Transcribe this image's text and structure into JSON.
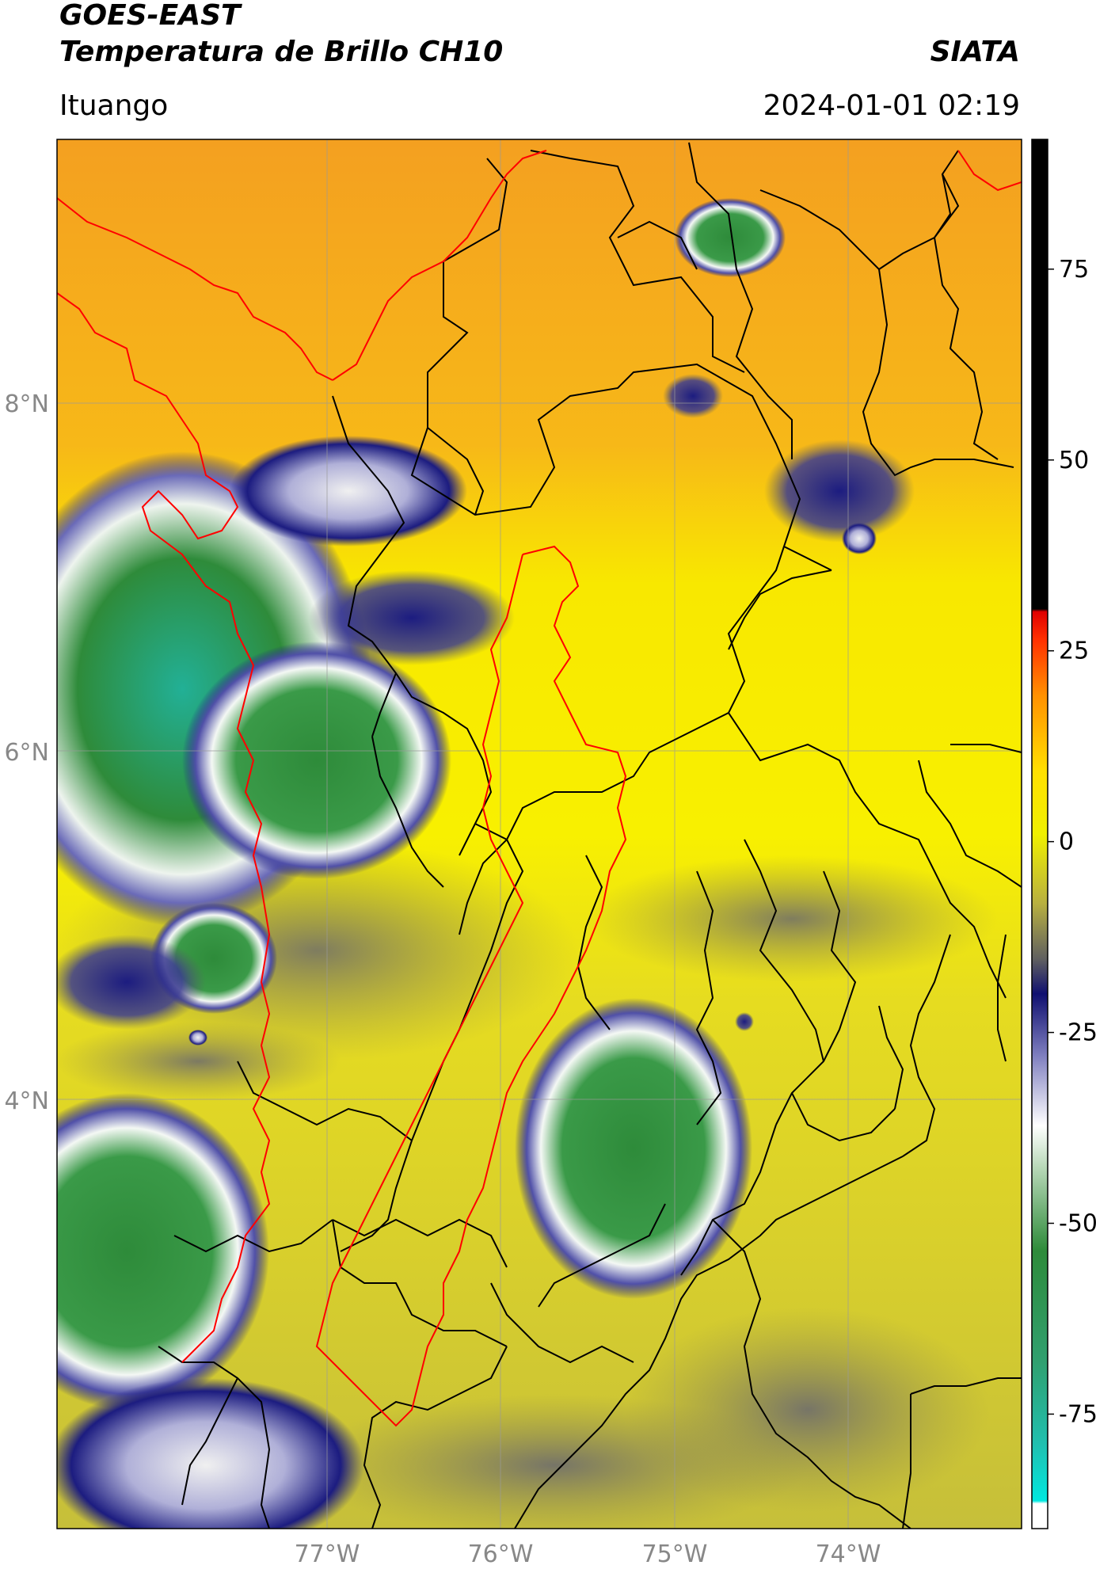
{
  "header": {
    "satellite": "GOES-EAST",
    "product": "Temperatura de Brillo CH10",
    "organization": "SIATA",
    "location": "Ituango",
    "datetime": "2024-01-01 02:19"
  },
  "map": {
    "latitude_labels": [
      "8°N",
      "6°N",
      "4°N"
    ],
    "longitude_labels": [
      "77°W",
      "76°W",
      "75°W",
      "74°W"
    ],
    "colors": {
      "background_orange": "#f5a623",
      "background_yellow": "#f8f000",
      "olive": "#c8c23a",
      "navy": "#1c1c80",
      "white_ring": "#e8efe8",
      "green_core": "#2e8b3a",
      "teal_core": "#1fb59a",
      "border_black": "#000000",
      "coastline_red": "#ff0000",
      "gridline": "#aaaaaa"
    }
  },
  "colorbar": {
    "tick_labels": [
      "75",
      "50",
      "25",
      "0",
      "-25",
      "-50",
      "-75"
    ],
    "tick_values": [
      75,
      50,
      25,
      0,
      -25,
      -50,
      -75
    ],
    "range": [
      -90,
      92
    ]
  }
}
